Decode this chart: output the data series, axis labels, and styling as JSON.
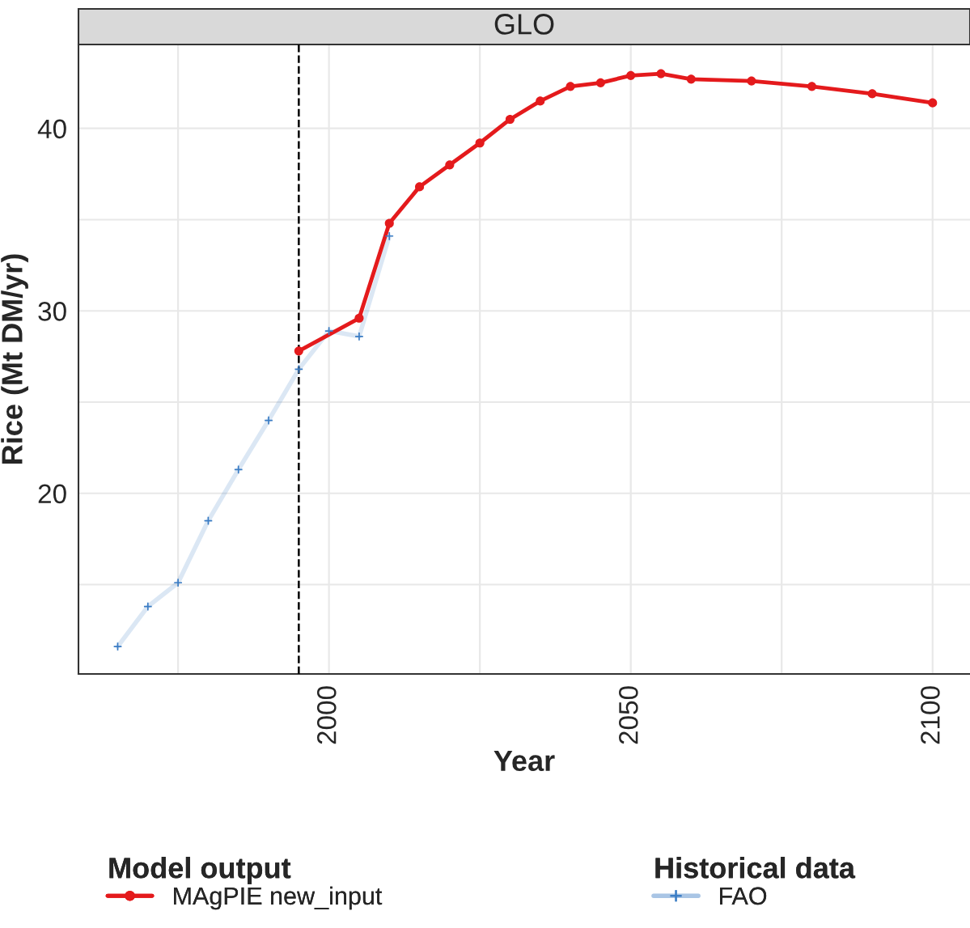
{
  "chart_data": {
    "type": "line",
    "title": "GLO",
    "xlabel": "Year",
    "ylabel": "Rice (Mt DM/yr)",
    "legend_title": [
      "Model output",
      "Historical data"
    ],
    "series": [
      {
        "name": "MAgPIE new_input",
        "color": "#e41a1c",
        "marker": "circle",
        "x": [
          1995,
          2005,
          2010,
          2015,
          2020,
          2025,
          2030,
          2035,
          2040,
          2045,
          2050,
          2055,
          2060,
          2070,
          2080,
          2090,
          2100
        ],
        "values": [
          27.8,
          29.6,
          34.8,
          36.8,
          38.0,
          39.2,
          40.5,
          41.5,
          42.3,
          42.5,
          42.9,
          43.0,
          42.7,
          42.6,
          42.3,
          41.9,
          41.4
        ]
      },
      {
        "name": "FAO",
        "color": "#3a7cc4",
        "marker": "cross",
        "x": [
          1965,
          1970,
          1975,
          1980,
          1985,
          1990,
          1995,
          2000,
          2005,
          2010
        ],
        "values": [
          11.6,
          13.8,
          15.1,
          18.5,
          21.3,
          24.0,
          26.8,
          28.9,
          28.6,
          34.1
        ]
      }
    ],
    "xlim": [
      1958.5,
      2106.2
    ],
    "ylim": [
      10.1,
      44.6
    ],
    "xticks": [
      {
        "value": 1975,
        "label": null
      },
      2000,
      {
        "value": 2025,
        "label": null
      },
      2050,
      {
        "value": 2075,
        "label": null
      },
      2100
    ],
    "yticks": [
      {
        "value": 15,
        "label": null
      },
      20,
      {
        "value": 25,
        "label": null
      },
      30,
      {
        "value": 35,
        "label": null
      },
      40
    ],
    "ref_lines": [
      {
        "axis": "x",
        "value": 1995,
        "color": "#000000",
        "line_style": "dashed"
      }
    ],
    "grid": true,
    "legend": "bottom"
  }
}
